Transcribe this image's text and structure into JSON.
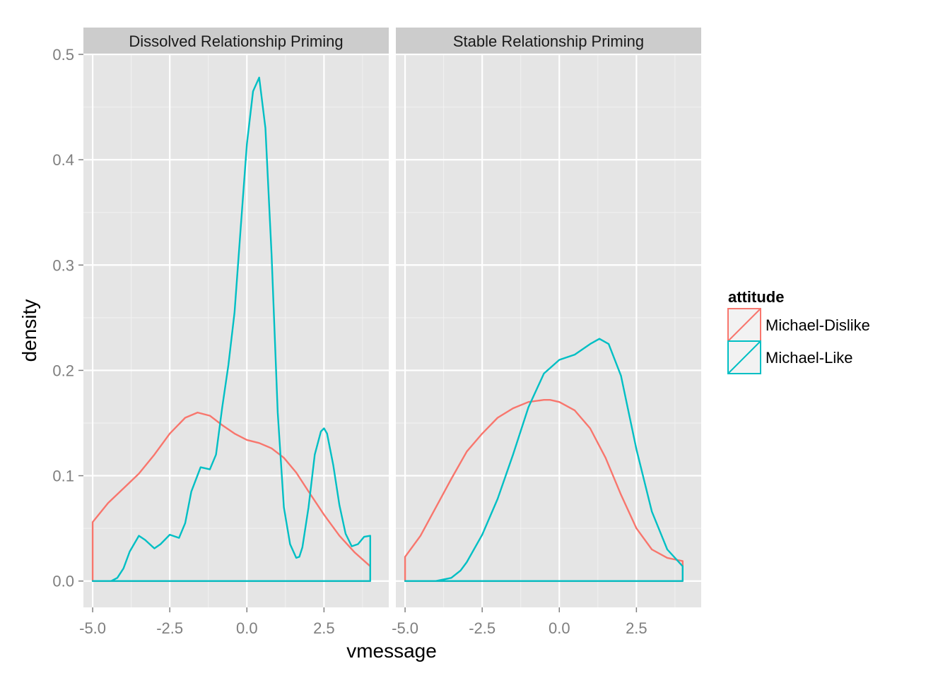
{
  "chart_data": {
    "type": "area",
    "xlabel": "vmessage",
    "ylabel": "density",
    "xlim": [
      -5.3,
      4.6
    ],
    "ylim": [
      -0.025,
      0.5
    ],
    "xticks": [
      "-5.0",
      "-2.5",
      "0.0",
      "2.5"
    ],
    "xtick_values": [
      -5,
      -2.5,
      0,
      2.5
    ],
    "yticks": [
      "0.0",
      "0.1",
      "0.2",
      "0.3",
      "0.4",
      "0.5"
    ],
    "ytick_values": [
      0,
      0.1,
      0.2,
      0.3,
      0.4,
      0.5
    ],
    "grid": true,
    "legend": {
      "title": "attitude",
      "placement": "right",
      "items": [
        {
          "name": "Michael-Dislike",
          "color": "#F8766D"
        },
        {
          "name": "Michael-Like",
          "color": "#00BFC4"
        }
      ]
    },
    "panels": [
      {
        "title": "Dissolved Relationship Priming",
        "series": [
          {
            "name": "Michael-Dislike",
            "color": "#F8766D",
            "x": [
              -5.0,
              -4.5,
              -4.0,
              -3.5,
              -3.0,
              -2.5,
              -2.0,
              -1.6,
              -1.2,
              -0.8,
              -0.4,
              0.0,
              0.4,
              0.8,
              1.2,
              1.6,
              2.0,
              2.5,
              3.0,
              3.5,
              4.0
            ],
            "y": [
              0.056,
              0.074,
              0.088,
              0.102,
              0.12,
              0.14,
              0.155,
              0.16,
              0.157,
              0.148,
              0.14,
              0.134,
              0.131,
              0.126,
              0.117,
              0.103,
              0.085,
              0.063,
              0.043,
              0.027,
              0.014
            ]
          },
          {
            "name": "Michael-Like",
            "color": "#00BFC4",
            "x": [
              -5.0,
              -4.4,
              -4.2,
              -4.0,
              -3.8,
              -3.5,
              -3.3,
              -3.0,
              -2.8,
              -2.5,
              -2.2,
              -2.0,
              -1.8,
              -1.5,
              -1.2,
              -1.0,
              -0.8,
              -0.6,
              -0.4,
              -0.2,
              0.0,
              0.2,
              0.4,
              0.6,
              0.8,
              1.0,
              1.2,
              1.4,
              1.6,
              1.7,
              1.8,
              2.0,
              2.2,
              2.4,
              2.5,
              2.6,
              2.8,
              3.0,
              3.2,
              3.4,
              3.6,
              3.8,
              4.0
            ],
            "y": [
              0.0,
              0.0,
              0.003,
              0.012,
              0.028,
              0.043,
              0.039,
              0.031,
              0.035,
              0.044,
              0.041,
              0.055,
              0.085,
              0.108,
              0.106,
              0.12,
              0.165,
              0.205,
              0.255,
              0.335,
              0.415,
              0.465,
              0.478,
              0.43,
              0.31,
              0.16,
              0.07,
              0.035,
              0.022,
              0.023,
              0.032,
              0.07,
              0.12,
              0.142,
              0.145,
              0.14,
              0.11,
              0.072,
              0.045,
              0.033,
              0.035,
              0.042,
              0.043
            ]
          }
        ]
      },
      {
        "title": "Stable Relationship Priming",
        "series": [
          {
            "name": "Michael-Dislike",
            "color": "#F8766D",
            "x": [
              -5.0,
              -4.5,
              -4.0,
              -3.5,
              -3.0,
              -2.5,
              -2.0,
              -1.5,
              -1.0,
              -0.5,
              -0.3,
              0.0,
              0.5,
              1.0,
              1.5,
              2.0,
              2.5,
              3.0,
              3.5,
              4.0
            ],
            "y": [
              0.023,
              0.043,
              0.07,
              0.097,
              0.123,
              0.14,
              0.155,
              0.164,
              0.17,
              0.172,
              0.172,
              0.17,
              0.162,
              0.145,
              0.117,
              0.082,
              0.05,
              0.03,
              0.022,
              0.019
            ]
          },
          {
            "name": "Michael-Like",
            "color": "#00BFC4",
            "x": [
              -5.0,
              -4.0,
              -3.5,
              -3.2,
              -3.0,
              -2.5,
              -2.0,
              -1.5,
              -1.0,
              -0.5,
              0.0,
              0.5,
              1.0,
              1.3,
              1.6,
              2.0,
              2.5,
              3.0,
              3.5,
              4.0
            ],
            "y": [
              0.0,
              0.0,
              0.003,
              0.01,
              0.018,
              0.044,
              0.078,
              0.12,
              0.165,
              0.197,
              0.21,
              0.215,
              0.225,
              0.23,
              0.225,
              0.195,
              0.125,
              0.066,
              0.03,
              0.014
            ]
          }
        ]
      }
    ]
  }
}
